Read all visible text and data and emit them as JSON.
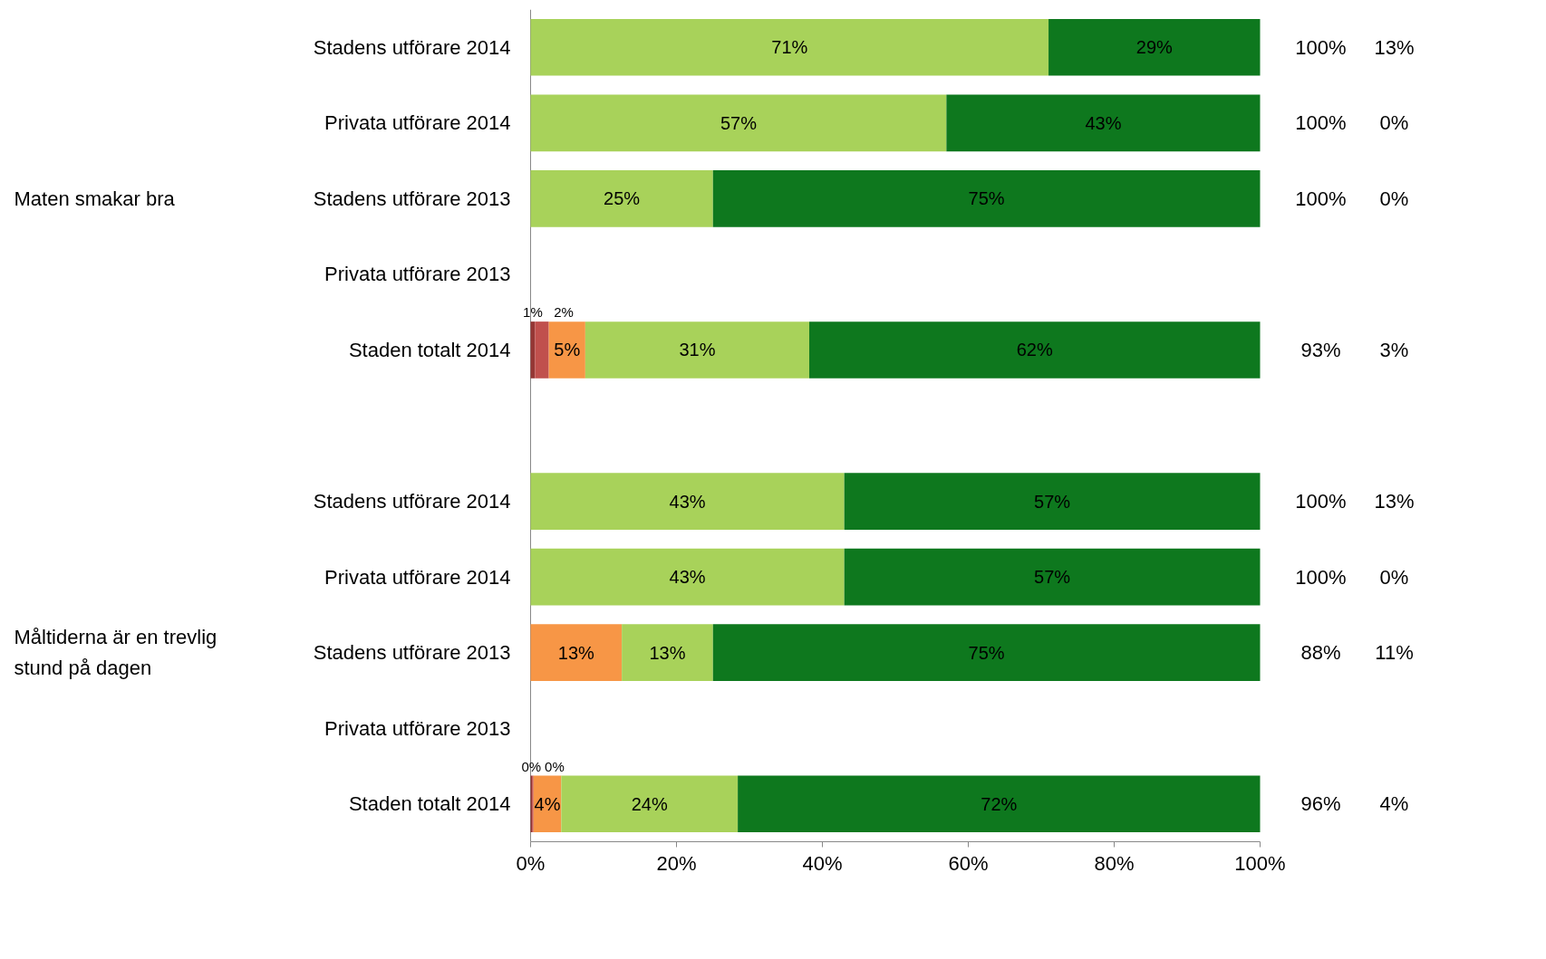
{
  "chart_data": {
    "type": "bar",
    "orientation": "horizontal",
    "stacked": true,
    "categories": [
      "Stadens utförare 2014",
      "Privata utförare 2014",
      "Stadens utförare 2013",
      "Privata utförare 2013",
      "Staden totalt 2014",
      null,
      "Stadens utförare 2014",
      "Privata utförare 2014",
      "Stadens utförare 2013",
      "Privata utförare 2013",
      "Staden totalt 2014"
    ],
    "series": [
      {
        "color": "#953735",
        "values": [
          null,
          null,
          null,
          null,
          0.6,
          null,
          null,
          null,
          null,
          null,
          0.2
        ],
        "value_labels": [
          null,
          null,
          null,
          null,
          "1%",
          null,
          null,
          null,
          null,
          null,
          "0%"
        ]
      },
      {
        "color": "#c0504d",
        "values": [
          null,
          null,
          null,
          null,
          1.9,
          null,
          null,
          null,
          null,
          null,
          0.2
        ],
        "value_labels": [
          null,
          null,
          null,
          null,
          "2%",
          null,
          null,
          null,
          null,
          null,
          "0%"
        ]
      },
      {
        "color": "#f79646",
        "values": [
          null,
          null,
          null,
          null,
          5,
          null,
          null,
          null,
          12.5,
          null,
          3.8
        ],
        "value_labels": [
          null,
          null,
          null,
          null,
          "5%",
          null,
          null,
          null,
          "13%",
          null,
          "4%"
        ]
      },
      {
        "color": "#a8d25a",
        "values": [
          71,
          57,
          25,
          null,
          30.7,
          null,
          43,
          43,
          12.5,
          null,
          24.2
        ],
        "value_labels": [
          "71%",
          "57%",
          "25%",
          null,
          "31%",
          null,
          "43%",
          "43%",
          "13%",
          null,
          "24%"
        ]
      },
      {
        "color": "#0e781e",
        "values": [
          29,
          43,
          75,
          null,
          61.8,
          null,
          57,
          57,
          75,
          null,
          71.6
        ],
        "value_labels": [
          "29%",
          "43%",
          "75%",
          null,
          "62%",
          null,
          "57%",
          "57%",
          "75%",
          null,
          "72%"
        ]
      }
    ],
    "xlim": [
      0,
      100
    ],
    "xticks": [
      {
        "value": 0,
        "label": "0%"
      },
      {
        "value": 20,
        "label": "20%"
      },
      {
        "value": 40,
        "label": "40%"
      },
      {
        "value": 60,
        "label": "60%"
      },
      {
        "value": 80,
        "label": "80%"
      },
      {
        "value": 100,
        "label": "100%"
      }
    ],
    "grid": false,
    "annotations": [
      "Maten smakar bra",
      "Måltiderna är en trevlig\nstund på dagen",
      "100%",
      "13%",
      "100%",
      "0%",
      "100%",
      "0%",
      "93%",
      "3%",
      "100%",
      "13%",
      "100%",
      "0%",
      "88%",
      "11%",
      "96%",
      "4%"
    ]
  }
}
